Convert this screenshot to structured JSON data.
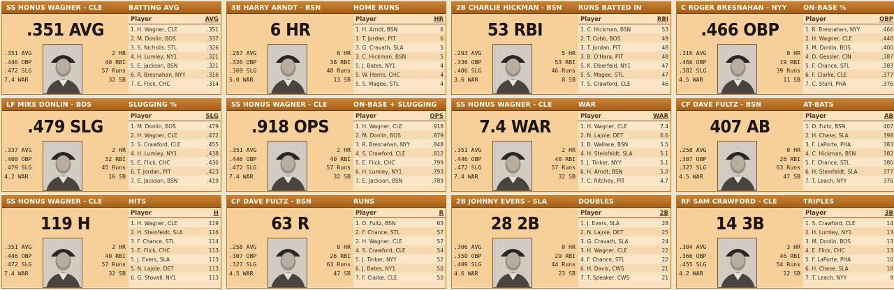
{
  "cards": [
    {
      "player_label": "SS HONUS WAGNER - CLE",
      "stat_title": "BATTING AVG",
      "big_stat": ".351 AVG",
      "photo": "portrait-photo",
      "left_stats": [
        ".351 AVG",
        ".446 OBP",
        ".472 SLG",
        "7.4 WAR"
      ],
      "right_stats": [
        "2 HR",
        "40 RBI",
        "57 Runs",
        "32 SB"
      ],
      "leader_header": "Player",
      "leader_stat_abbr": "AVG",
      "leaders": [
        {
          "name": "1. H. Wagner, CLE",
          "value": ".351"
        },
        {
          "name": "2. M. Donlin, BOS",
          "value": ".337"
        },
        {
          "name": "3. S. Nicholls, STL",
          "value": ".326"
        },
        {
          "name": "4. H. Lumley, NY1",
          "value": ".321"
        },
        {
          "name": "5. E. Jackson, BSN",
          "value": ".321"
        },
        {
          "name": "6. R. Bresnahan, NYY",
          "value": ".316"
        },
        {
          "name": "7. E. Flick, CHC",
          "value": ".314"
        }
      ]
    },
    {
      "player_label": "3B HARRY ARNDT - BSN",
      "stat_title": "HOME RUNS",
      "big_stat": "6 HR",
      "photo": "portrait-photo",
      "left_stats": [
        ".257 AVG",
        ".326 OBP",
        ".369 SLG",
        "5.0 WAR"
      ],
      "right_stats": [
        "6 HR",
        "38 RBI",
        "48 Runs",
        "13 SB"
      ],
      "leader_header": "Player",
      "leader_stat_abbr": "HR",
      "leaders": [
        {
          "name": "1. H. Arndt, BSN",
          "value": "6"
        },
        {
          "name": "1. T. Jordan, PIT",
          "value": "6"
        },
        {
          "name": "3. G. Cravath, SLA",
          "value": "5"
        },
        {
          "name": "3. C. Hickman, BSN",
          "value": "5"
        },
        {
          "name": "5. J. Bates, NY1",
          "value": "4"
        },
        {
          "name": "5. W. Harris, CHC",
          "value": "4"
        },
        {
          "name": "5. S. Magee, STL",
          "value": "4"
        }
      ]
    },
    {
      "player_label": "2B CHARLIE HICKMAN - BSN",
      "stat_title": "RUNS BATTED IN",
      "big_stat": "53 RBI",
      "photo": "portrait-photo",
      "left_stats": [
        ".293 AVG",
        ".336 OBP",
        ".406 SLG",
        "3.6 WAR"
      ],
      "right_stats": [
        "5 HR",
        "53 RBI",
        "46 Runs",
        "8 SB"
      ],
      "leader_header": "Player",
      "leader_stat_abbr": "RBI",
      "leaders": [
        {
          "name": "1. C. Hickman, BSN",
          "value": "53"
        },
        {
          "name": "2. T. Cobb, BOS",
          "value": "49"
        },
        {
          "name": "3. T. Jordan, PIT",
          "value": "48"
        },
        {
          "name": "3. B. O'Hara, PIT",
          "value": "48"
        },
        {
          "name": "5. K. Elberfeld, NY1",
          "value": "47"
        },
        {
          "name": "5. S. Magee, STL",
          "value": "47"
        },
        {
          "name": "7. S. Crawford, CLE",
          "value": "46"
        }
      ]
    },
    {
      "player_label": "C ROGER BRESNAHAN - NYY",
      "stat_title": "ON-BASE %",
      "big_stat": ".466 OBP",
      "photo": "portrait-photo",
      "left_stats": [
        ".316 AVG",
        ".466 OBP",
        ".382 SLG",
        "4.5 WAR"
      ],
      "right_stats": [
        "0 HR",
        "19 RBI",
        "39 Runs",
        "11 SB"
      ],
      "leader_header": "Player",
      "leader_stat_abbr": "OBP",
      "leaders": [
        {
          "name": "1. R. Bresnahan, NYY",
          "value": ".466"
        },
        {
          "name": "2. H. Wagner, CLE",
          "value": ".446"
        },
        {
          "name": "3. M. Donlin, BOS",
          "value": ".400"
        },
        {
          "name": "4. D. Gessler, CIN",
          "value": ".387"
        },
        {
          "name": "5. F. Chance, STL",
          "value": ".383"
        },
        {
          "name": "6. F. Clarke, CLE",
          "value": ".377"
        },
        {
          "name": "7. C. Stahl, PHA",
          "value": ".376"
        }
      ]
    },
    {
      "player_label": "LF MIKE DONLIN - BOS",
      "stat_title": "SLUGGING %",
      "big_stat": ".479 SLG",
      "photo": "portrait-photo",
      "left_stats": [
        ".337 AVG",
        ".400 OBP",
        ".479 SLG",
        "4.2 WAR"
      ],
      "right_stats": [
        "2 HR",
        "32 RBI",
        "45 Runs",
        "16 SB"
      ],
      "leader_header": "Player",
      "leader_stat_abbr": "SLG",
      "leaders": [
        {
          "name": "1. M. Donlin, BOS",
          "value": ".479"
        },
        {
          "name": "2. H. Wagner, CLE",
          "value": ".472"
        },
        {
          "name": "3. S. Crawford, CLE",
          "value": ".455"
        },
        {
          "name": "4. H. Lumley, NY1",
          "value": ".438"
        },
        {
          "name": "5. E. Flick, CHC",
          "value": ".430"
        },
        {
          "name": "6. T. Jordan, PIT",
          "value": ".423"
        },
        {
          "name": "7. E. Jackson, BSN",
          "value": ".419"
        }
      ]
    },
    {
      "player_label": "SS HONUS WAGNER - CLE",
      "stat_title": "ON-BASE + SLUGGING",
      "big_stat": ".918 OPS",
      "photo": "portrait-photo",
      "left_stats": [
        ".351 AVG",
        ".446 OBP",
        ".472 SLG",
        "7.4 WAR"
      ],
      "right_stats": [
        "2 HR",
        "40 RBI",
        "57 Runs",
        "32 SB"
      ],
      "leader_header": "Player",
      "leader_stat_abbr": "OPS",
      "leaders": [
        {
          "name": "1. H. Wagner, CLE",
          "value": ".918"
        },
        {
          "name": "2. M. Donlin, BOS",
          "value": ".879"
        },
        {
          "name": "3. R. Bresnahan, NYY",
          "value": ".848"
        },
        {
          "name": "4. S. Crawford, CLE",
          "value": ".812"
        },
        {
          "name": "5. E. Flick, CHC",
          "value": ".799"
        },
        {
          "name": "6. H. Lumley, NY1",
          "value": ".793"
        },
        {
          "name": "7. E. Jackson, BSN",
          "value": ".789"
        }
      ]
    },
    {
      "player_label": "SS HONUS WAGNER - CLE",
      "stat_title": "WAR",
      "big_stat": "7.4 WAR",
      "photo": "portrait-photo",
      "left_stats": [
        ".351 AVG",
        ".446 OBP",
        ".472 SLG",
        "7.4 WAR"
      ],
      "right_stats": [
        "2 HR",
        "40 RBI",
        "57 Runs",
        "32 SB"
      ],
      "leader_header": "Player",
      "leader_stat_abbr": "WAR",
      "leaders": [
        {
          "name": "1. H. Wagner, CLE",
          "value": "7.4"
        },
        {
          "name": "2. N. Lajoie, DET",
          "value": "6.6"
        },
        {
          "name": "3. B. Wallace, BSN",
          "value": "5.5"
        },
        {
          "name": "4. H. Steinfeldt, SLA",
          "value": "5.1"
        },
        {
          "name": "5. J. Tinker, NYY",
          "value": "5.1"
        },
        {
          "name": "6. H. Arndt, BSN",
          "value": "5.0"
        },
        {
          "name": "7. C. Ritchey, PIT",
          "value": "4.7"
        }
      ]
    },
    {
      "player_label": "CF DAVE FULTZ - BSN",
      "stat_title": "AT-BATS",
      "big_stat": "407 AB",
      "photo": "portrait-photo",
      "left_stats": [
        ".258 AVG",
        ".307 OBP",
        ".327 SLG",
        "4.5 WAR"
      ],
      "right_stats": [
        "0 HR",
        "26 RBI",
        "63 Runs",
        "47 SB"
      ],
      "leader_header": "Player",
      "leader_stat_abbr": "AB",
      "leaders": [
        {
          "name": "1. D. Fultz, BSN",
          "value": "407"
        },
        {
          "name": "2. H. Chase, SLA",
          "value": "398"
        },
        {
          "name": "3. F. LaPorte, PHA",
          "value": "383"
        },
        {
          "name": "4. C. Hickman, BSN",
          "value": "382"
        },
        {
          "name": "5. F. Chance, STL",
          "value": "380"
        },
        {
          "name": "6. H. Steinfeldt, SLA",
          "value": "377"
        },
        {
          "name": "7. T. Leach, NYY",
          "value": "376"
        }
      ]
    },
    {
      "player_label": "SS HONUS WAGNER - CLE",
      "stat_title": "HITS",
      "big_stat": "119 H",
      "photo": "portrait-photo",
      "left_stats": [
        ".351 AVG",
        ".446 OBP",
        ".472 SLG",
        "7.4 WAR"
      ],
      "right_stats": [
        "2 HR",
        "40 RBI",
        "57 Runs",
        "32 SB"
      ],
      "leader_header": "Player",
      "leader_stat_abbr": "H",
      "leaders": [
        {
          "name": "1. H. Wagner, CLE",
          "value": "119"
        },
        {
          "name": "2. H. Steinfeldt, SLA",
          "value": "116"
        },
        {
          "name": "3. F. Chance, STL",
          "value": "114"
        },
        {
          "name": "3. E. Flick, CHC",
          "value": "113"
        },
        {
          "name": "5. J. Evers, SLA",
          "value": "113"
        },
        {
          "name": "5. N. Lajoie, DET",
          "value": "113"
        },
        {
          "name": "6. G. Stovall, NY1",
          "value": "113"
        }
      ]
    },
    {
      "player_label": "CF DAVE FULTZ - BSN",
      "stat_title": "RUNS",
      "big_stat": "63 R",
      "photo": "portrait-photo",
      "left_stats": [
        ".258 AVG",
        ".307 OBP",
        ".327 SLG",
        "4.5 WAR"
      ],
      "right_stats": [
        "0 HR",
        "26 RBI",
        "63 Runs",
        "47 SB"
      ],
      "leader_header": "Player",
      "leader_stat_abbr": "R",
      "leaders": [
        {
          "name": "1. D. Fultz, BSN",
          "value": "63"
        },
        {
          "name": "2. F. Chance, STL",
          "value": "57"
        },
        {
          "name": "2. H. Wagner, CLE",
          "value": "57"
        },
        {
          "name": "4. S. Crawford, CLE",
          "value": "54"
        },
        {
          "name": "5. J. Tinker, NYY",
          "value": "52"
        },
        {
          "name": "6. J. Bates, NY1",
          "value": "50"
        },
        {
          "name": "7. F. Clarke, CLE",
          "value": "50"
        }
      ]
    },
    {
      "player_label": "2B JOHNNY EVERS - SLA",
      "stat_title": "DOUBLES",
      "big_stat": "28 2B",
      "photo": "portrait-photo",
      "left_stats": [
        ".306 AVG",
        ".350 OBP",
        ".409 SLG",
        "4.6 WAR"
      ],
      "right_stats": [
        "0 HR",
        "29 RBI",
        "44 Runs",
        "23 SB"
      ],
      "leader_header": "Player",
      "leader_stat_abbr": "2B",
      "leaders": [
        {
          "name": "1. J. Evers, SLA",
          "value": "28"
        },
        {
          "name": "2. N. Lajoie, DET",
          "value": "25"
        },
        {
          "name": "3. G. Cravath, SLA",
          "value": "24"
        },
        {
          "name": "3. H. Wagner, CLE",
          "value": "22"
        },
        {
          "name": "4. F. Chance, STL",
          "value": "22"
        },
        {
          "name": "6. H. Davis, CWS",
          "value": "21"
        },
        {
          "name": "7. T. Speaker, CWS",
          "value": "21"
        }
      ]
    },
    {
      "player_label": "RF SAM CRAWFORD - CLE",
      "stat_title": "TRIPLES",
      "big_stat": "14 3B",
      "photo": "portrait-photo",
      "left_stats": [
        ".304 AVG",
        ".366 OBP",
        ".455 SLG",
        "4.2 WAR"
      ],
      "right_stats": [
        "3 HR",
        "46 RBI",
        "54 Runs",
        "12 SB"
      ],
      "leader_header": "Player",
      "leader_stat_abbr": "3B",
      "leaders": [
        {
          "name": "1. S. Crawford, CLE",
          "value": "14"
        },
        {
          "name": "2. H. Lumley, NY1",
          "value": "13"
        },
        {
          "name": "3. M. Donlin, BOS",
          "value": "13"
        },
        {
          "name": "4. E. Flick, CHC",
          "value": "13"
        },
        {
          "name": "5. F. LaPorte, PHA",
          "value": "10"
        },
        {
          "name": "6. H. Chase, SLA",
          "value": "10"
        },
        {
          "name": "7. T. Leach, NYY",
          "value": "9"
        }
      ]
    }
  ]
}
